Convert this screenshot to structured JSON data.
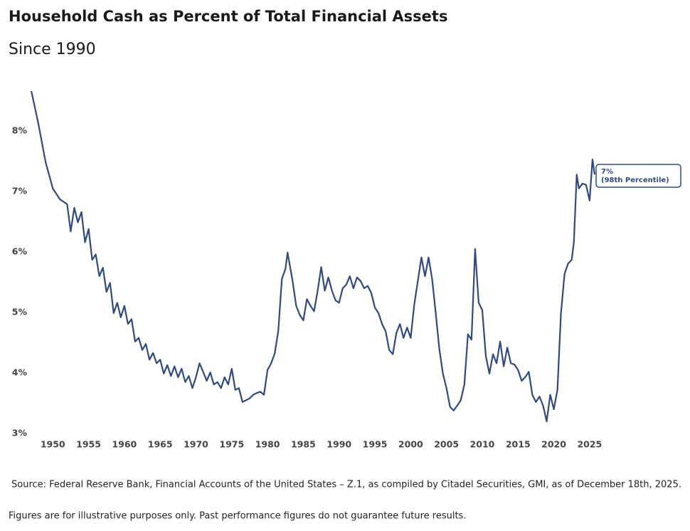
{
  "chart_data": {
    "type": "line",
    "title": "Household Cash as Percent of Total Financial Assets",
    "subtitle": "Since 1990",
    "annotation": [
      "7%",
      "(98th Percentile)"
    ],
    "source": "Source: Federal Reserve Bank, Financial Accounts of the United States – Z.1, as compiled by Citadel Securities, GMI, as of December 18th, 2025.",
    "disclaimer": "Figures are for illustrative purposes only. Past performance figures do not guarantee future results.",
    "color": "#2e4a86",
    "grid": false,
    "xlim": [
      1946,
      2027
    ],
    "ylim": [
      2.85,
      8.8
    ],
    "xticks": [
      1950,
      1955,
      1960,
      1965,
      1970,
      1975,
      1980,
      1985,
      1990,
      1995,
      2000,
      2005,
      2010,
      2015,
      2020,
      2025
    ],
    "yticks": [
      {
        "value": 3,
        "label": "3%"
      },
      {
        "value": 4,
        "label": "4%"
      },
      {
        "value": 5,
        "label": "5%"
      },
      {
        "value": 6,
        "label": "6%"
      },
      {
        "value": 7,
        "label": "7%"
      },
      {
        "value": 8,
        "label": "8%"
      }
    ],
    "x": [
      1947,
      1948,
      1949,
      1950,
      1951,
      1952,
      1952.5,
      1953,
      1953.5,
      1954,
      1954.5,
      1955,
      1955.5,
      1956,
      1956.5,
      1957,
      1957.5,
      1958,
      1958.5,
      1959,
      1959.5,
      1960,
      1960.5,
      1961,
      1961.5,
      1962,
      1962.5,
      1963,
      1963.5,
      1964,
      1964.5,
      1965,
      1965.5,
      1966,
      1966.5,
      1967,
      1967.5,
      1968,
      1968.5,
      1969,
      1969.5,
      1970,
      1970.5,
      1971,
      1971.5,
      1972,
      1972.5,
      1973,
      1973.5,
      1974,
      1974.5,
      1975,
      1975.5,
      1976,
      1976.5,
      1977,
      1977.5,
      1978,
      1978.5,
      1979,
      1979.5,
      1980,
      1980.5,
      1981,
      1981.5,
      1982,
      1982.5,
      1982.8,
      1983.5,
      1984,
      1984.5,
      1985,
      1985.5,
      1986,
      1986.5,
      1987,
      1987.5,
      1988,
      1988.5,
      1989,
      1989.5,
      1990,
      1990.5,
      1991,
      1991.5,
      1992,
      1992.5,
      1993,
      1993.5,
      1994,
      1994.5,
      1995,
      1995.5,
      1996,
      1996.5,
      1997,
      1997.5,
      1998,
      1998.5,
      1999,
      1999.5,
      2000,
      2000.5,
      2001,
      2001.5,
      2002,
      2002.5,
      2003,
      2003.5,
      2004,
      2004.5,
      2005,
      2005.5,
      2006,
      2006.5,
      2007,
      2007.5,
      2008,
      2008.5,
      2009,
      2009.5,
      2010,
      2010.5,
      2011,
      2011.5,
      2012,
      2012.5,
      2013,
      2013.5,
      2014,
      2014.5,
      2015,
      2015.5,
      2016,
      2016.5,
      2017,
      2017.5,
      2018,
      2018.5,
      2019,
      2019.5,
      2020,
      2020.5,
      2021,
      2021.5,
      2022,
      2022.5,
      2022.8,
      2023.2,
      2023.5,
      2024,
      2024.5,
      2025,
      2025.4,
      2025.7
    ],
    "values": [
      8.66,
      8.11,
      7.48,
      7.05,
      6.87,
      6.79,
      6.34,
      6.73,
      6.49,
      6.66,
      6.16,
      6.38,
      5.87,
      5.96,
      5.6,
      5.74,
      5.34,
      5.49,
      4.99,
      5.16,
      4.92,
      5.11,
      4.81,
      4.89,
      4.52,
      4.58,
      4.38,
      4.48,
      4.22,
      4.33,
      4.16,
      4.22,
      3.99,
      4.13,
      3.95,
      4.11,
      3.93,
      4.07,
      3.85,
      3.95,
      3.75,
      3.93,
      4.16,
      4.02,
      3.87,
      4.01,
      3.81,
      3.85,
      3.75,
      3.93,
      3.81,
      4.07,
      3.72,
      3.75,
      3.52,
      3.55,
      3.58,
      3.64,
      3.67,
      3.69,
      3.64,
      4.05,
      4.16,
      4.32,
      4.69,
      5.55,
      5.72,
      5.99,
      5.52,
      5.11,
      4.96,
      4.87,
      5.22,
      5.11,
      5.02,
      5.36,
      5.75,
      5.36,
      5.58,
      5.36,
      5.2,
      5.16,
      5.4,
      5.46,
      5.6,
      5.4,
      5.58,
      5.52,
      5.4,
      5.44,
      5.32,
      5.08,
      4.99,
      4.81,
      4.69,
      4.38,
      4.31,
      4.66,
      4.81,
      4.58,
      4.75,
      4.58,
      5.13,
      5.52,
      5.91,
      5.6,
      5.91,
      5.55,
      4.99,
      4.4,
      3.99,
      3.75,
      3.44,
      3.38,
      3.46,
      3.55,
      3.81,
      4.64,
      4.55,
      6.05,
      5.16,
      5.04,
      4.28,
      3.99,
      4.31,
      4.16,
      4.52,
      4.11,
      4.42,
      4.16,
      4.14,
      4.05,
      3.87,
      3.93,
      4.02,
      3.64,
      3.52,
      3.61,
      3.46,
      3.2,
      3.64,
      3.4,
      3.72,
      4.99,
      5.64,
      5.81,
      5.87,
      6.16,
      7.28,
      7.05,
      7.13,
      7.11,
      6.85,
      7.53,
      7.28
    ]
  }
}
